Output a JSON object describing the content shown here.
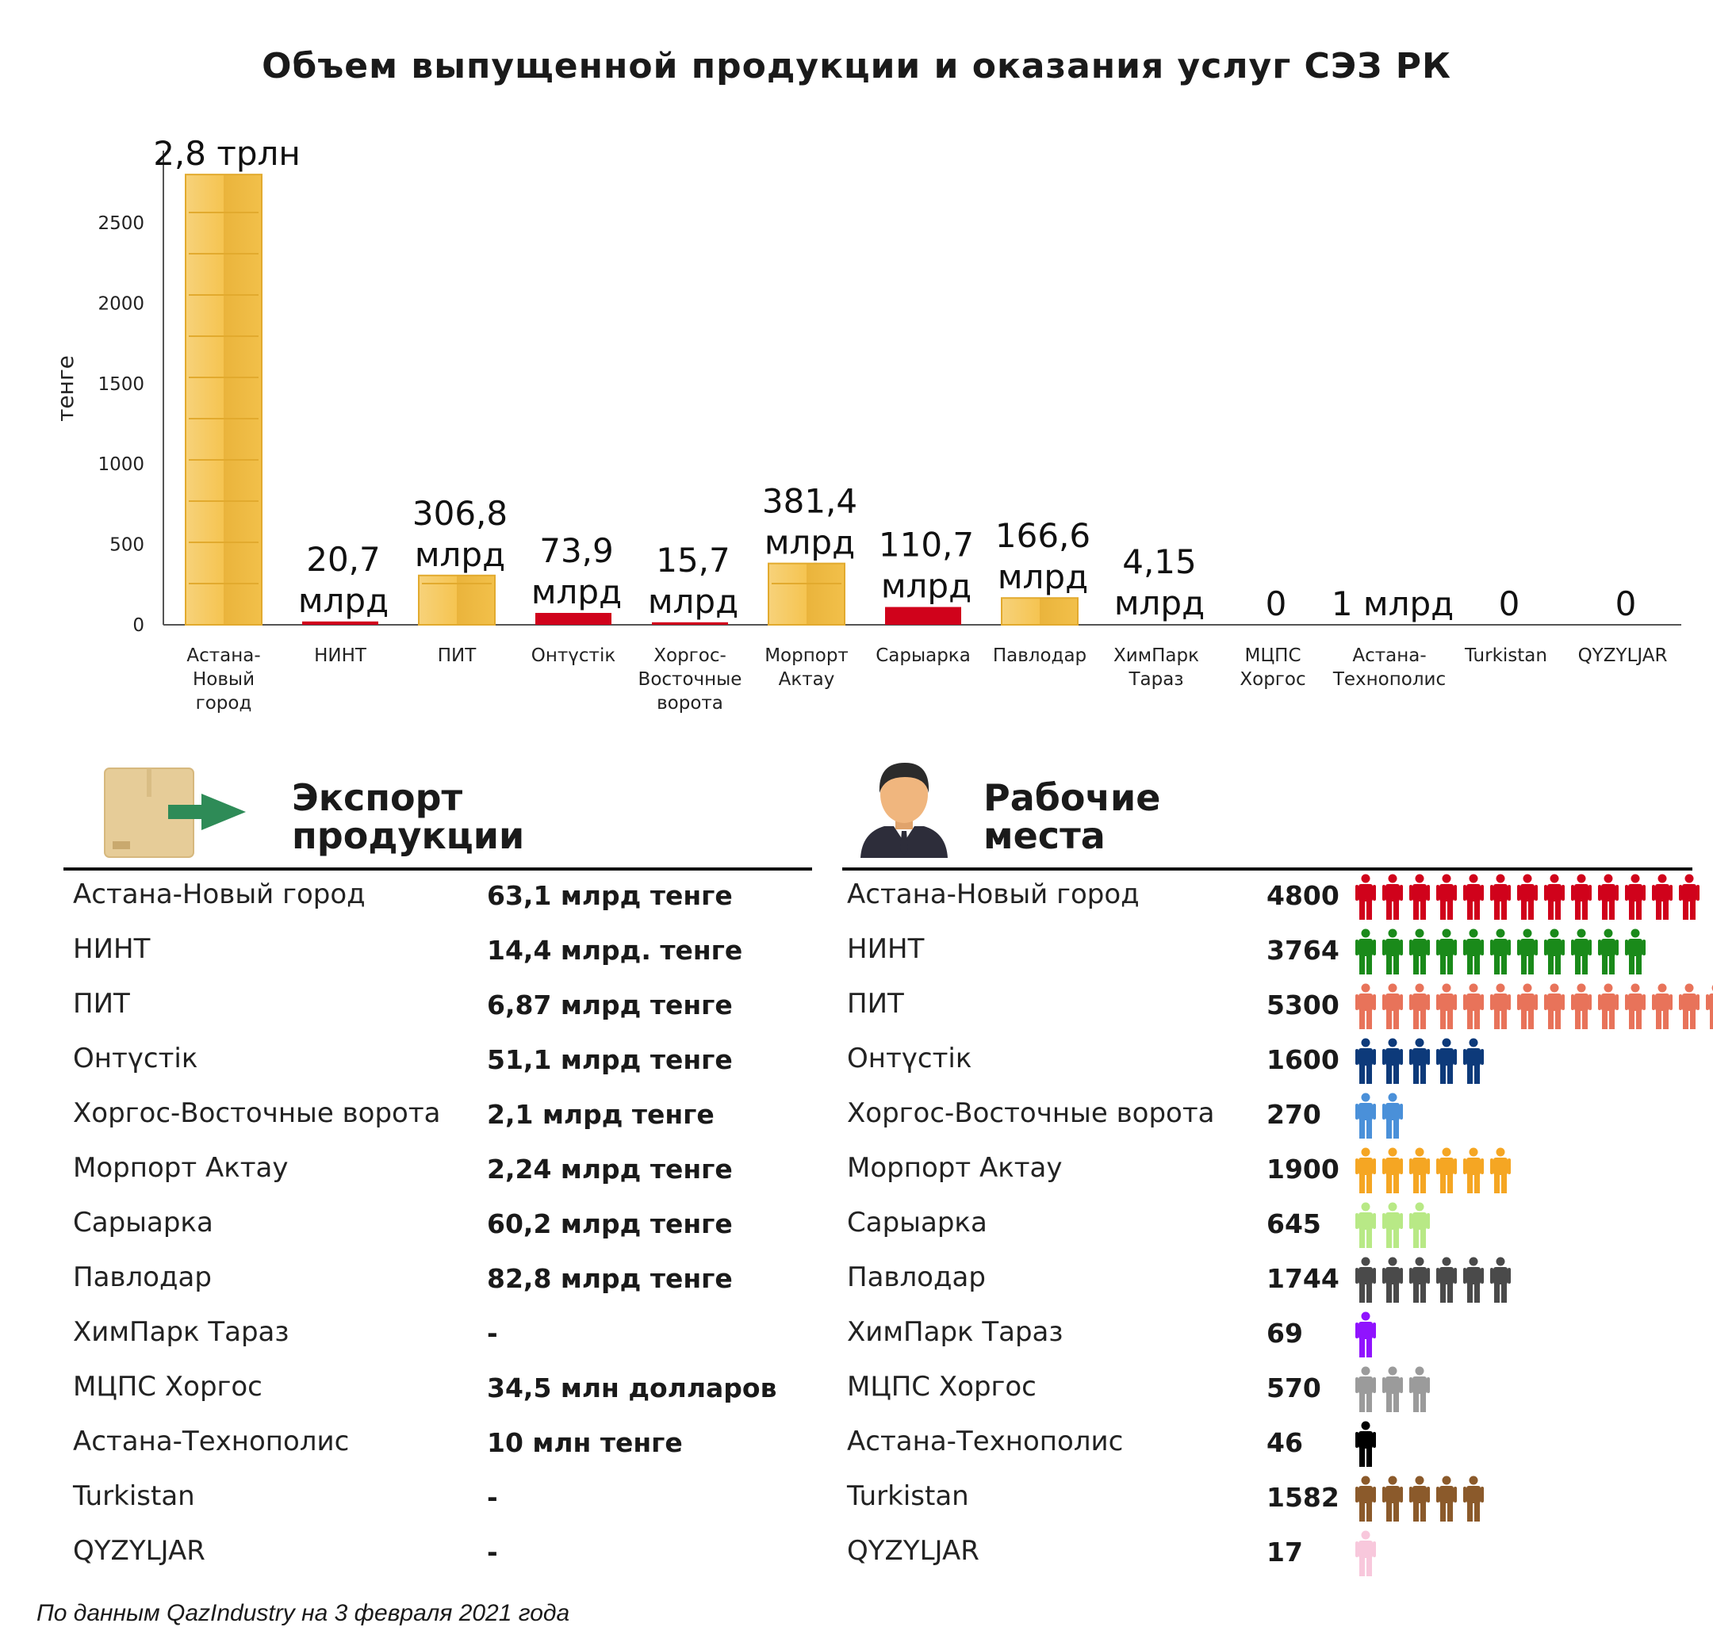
{
  "title": "Объем  выпущенной  продукции и оказания услуг СЭЗ РК",
  "chart_data": {
    "type": "bar",
    "ylabel": "тенге",
    "ylim": [
      0,
      2850
    ],
    "yticks": [
      0,
      500,
      1000,
      1500,
      2000,
      2500
    ],
    "categories": [
      "Астана-\nНовый\nгород",
      "НИНТ",
      "ПИТ",
      "Онтүстік",
      "Хоргос-\nВосточные\nворота",
      "Морпорт\nАктау",
      "Сарыарка",
      "Павлодар",
      "ХимПарк\nТараз",
      "МЦПС\nХоргос",
      "Астана-\nТехнополис",
      "Turkistan",
      "QYZYLJAR"
    ],
    "values": [
      2800,
      20.7,
      306.8,
      73.9,
      15.7,
      381.4,
      110.7,
      166.6,
      4.15,
      0,
      1,
      0,
      0
    ],
    "value_labels": [
      "2,8 трлн",
      "20,7\nмлрд",
      "306,8\nмлрд",
      "73,9\nмлрд",
      "15,7\nмлрд",
      "381,4\nмлрд",
      "110,7\nмлрд",
      "166,6\nмлрд",
      "4,15\nмлрд",
      "0",
      "1 млрд",
      "0",
      "0"
    ],
    "bar_styles": [
      "gold",
      "red",
      "gold",
      "red",
      "red",
      "gold",
      "red",
      "gold",
      "none",
      "none",
      "none",
      "none",
      "none"
    ],
    "colors": {
      "gold": "#f5c451",
      "gold_dark": "#e2aa2e",
      "red": "#d0021b"
    }
  },
  "export": {
    "heading_line1": "Экспорт",
    "heading_line2": "продукции",
    "icon": "box-arrow-icon",
    "rows": [
      {
        "name": "Астана-Новый город",
        "value": "63,1 млрд тенге"
      },
      {
        "name": "НИНТ",
        "value": "14,4 млрд. тенге"
      },
      {
        "name": "ПИТ",
        "value": "6,87 млрд тенге"
      },
      {
        "name": "Онтүстік",
        "value": "51,1 млрд тенге"
      },
      {
        "name": "Хоргос-Восточные ворота",
        "value": "2,1 млрд тенге"
      },
      {
        "name": "Морпорт Актау",
        "value": "2,24 млрд тенге"
      },
      {
        "name": "Сарыарка",
        "value": "60,2 млрд тенге"
      },
      {
        "name": "Павлодар",
        "value": "82,8 млрд тенге"
      },
      {
        "name": "ХимПарк Тараз",
        "value": "-"
      },
      {
        "name": "МЦПС Хоргос",
        "value": "34,5 млн долларов"
      },
      {
        "name": "Астана-Технополис",
        "value": "10 млн тенге"
      },
      {
        "name": "Turkistan",
        "value": "-"
      },
      {
        "name": "QYZYLJAR",
        "value": "-"
      }
    ]
  },
  "jobs": {
    "heading_line1": "Рабочие",
    "heading_line2": "места",
    "icon": "businessman-icon",
    "rows": [
      {
        "name": "Астана-Новый город",
        "value": "4800",
        "icons": 13,
        "color": "#d0021b"
      },
      {
        "name": "НИНТ",
        "value": "3764",
        "icons": 11,
        "color": "#1a8a1a"
      },
      {
        "name": "ПИТ",
        "value": "5300",
        "icons": 15,
        "color": "#e8735a"
      },
      {
        "name": "Онтүстік",
        "value": "1600",
        "icons": 5,
        "color": "#0d3a7a"
      },
      {
        "name": "Хоргос-Восточные ворота",
        "value": "270",
        "icons": 2,
        "color": "#4a90d9"
      },
      {
        "name": "Морпорт Актау",
        "value": "1900",
        "icons": 6,
        "color": "#f5a623"
      },
      {
        "name": "Сарыарка",
        "value": "645",
        "icons": 3,
        "color": "#b8e986"
      },
      {
        "name": "Павлодар",
        "value": "1744",
        "icons": 6,
        "color": "#4a4a4a"
      },
      {
        "name": "ХимПарк Тараз",
        "value": "69",
        "icons": 1,
        "color": "#9013fe"
      },
      {
        "name": "МЦПС Хоргос",
        "value": "570",
        "icons": 3,
        "color": "#9b9b9b"
      },
      {
        "name": "Астана-Технополис",
        "value": "46",
        "icons": 1,
        "color": "#000000"
      },
      {
        "name": "Turkistan",
        "value": "1582",
        "icons": 5,
        "color": "#8b5a2b"
      },
      {
        "name": "QYZYLJAR",
        "value": "17",
        "icons": 1,
        "color": "#f8c8dc"
      }
    ]
  },
  "footer": "По данным QazIndustry на 3 февраля 2021 года"
}
